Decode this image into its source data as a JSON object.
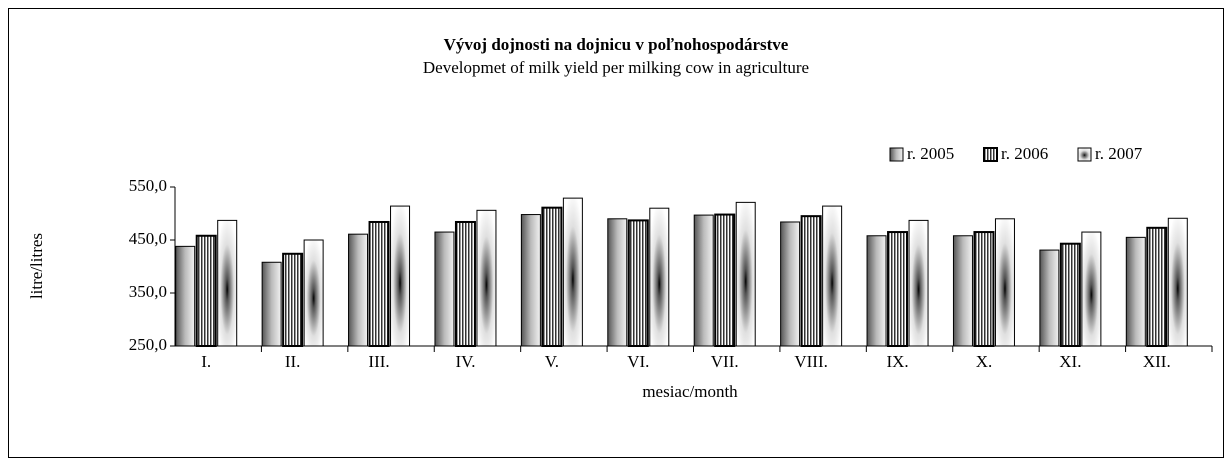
{
  "chart_data": {
    "type": "bar",
    "title": "Vývoj dojnosti na dojnicu v poľnohospodárstve",
    "subtitle": "Developmet of milk yield  per milking cow in agriculture",
    "x_label": "mesiac/month",
    "y_label": "litre/litres",
    "categories": [
      "I.",
      "II.",
      "III.",
      "IV.",
      "V.",
      "VI.",
      "VII.",
      "VIII.",
      "IX.",
      "X.",
      "XI.",
      "XII."
    ],
    "series": [
      {
        "name": "r. 2005",
        "values": [
          438,
          408,
          461,
          465,
          498,
          490,
          497,
          484,
          458,
          458,
          431,
          455
        ]
      },
      {
        "name": "r. 2006",
        "values": [
          458,
          424,
          484,
          484,
          511,
          487,
          498,
          495,
          465,
          465,
          443,
          473
        ]
      },
      {
        "name": "r. 2007",
        "values": [
          487,
          450,
          514,
          506,
          529,
          510,
          521,
          514,
          487,
          490,
          465,
          491
        ]
      }
    ],
    "ylim": [
      250,
      550
    ],
    "yticks": [
      {
        "value": 250,
        "label": "250,0"
      },
      {
        "value": 350,
        "label": "350,0"
      },
      {
        "value": 450,
        "label": "450,0"
      },
      {
        "value": 550,
        "label": "550,0"
      }
    ],
    "legend": "top-right"
  }
}
